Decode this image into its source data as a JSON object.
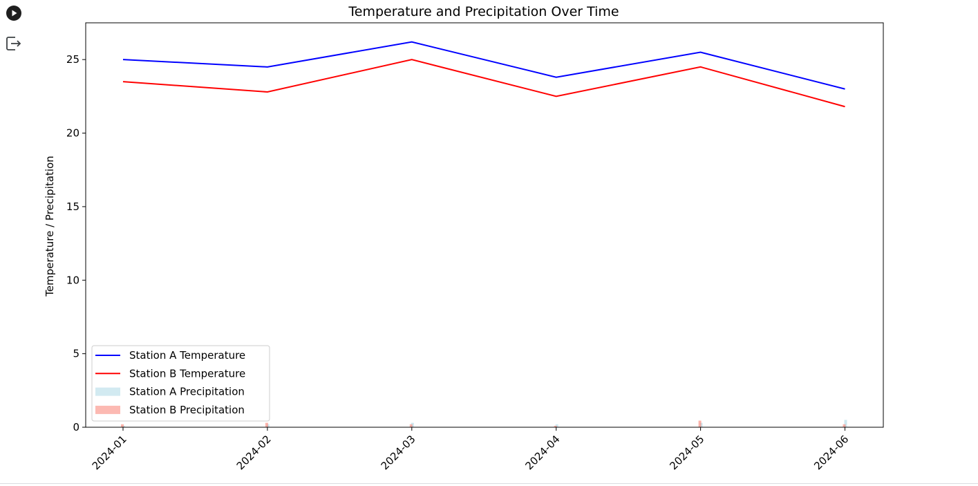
{
  "cell": {
    "run_icon": "play-circle-icon",
    "output_icon": "output-redirect-icon"
  },
  "chart_data": {
    "type": "line",
    "title": "Temperature and Precipitation Over Time",
    "xlabel": "",
    "ylabel": "Temperature / Precipitation",
    "categories": [
      "2024-01",
      "2024-02",
      "2024-03",
      "2024-04",
      "2024-05",
      "2024-06"
    ],
    "ylim": [
      0,
      27.5
    ],
    "yticks": [
      0,
      5,
      10,
      15,
      20,
      25
    ],
    "grid": false,
    "legend_position": "lower-left",
    "line_series": [
      {
        "name": "Station A Temperature",
        "color": "#0000ff",
        "values": [
          25.0,
          24.5,
          26.2,
          23.8,
          25.5,
          23.0
        ]
      },
      {
        "name": "Station B Temperature",
        "color": "#ff0000",
        "values": [
          23.5,
          22.8,
          25.0,
          22.5,
          24.5,
          21.8
        ]
      }
    ],
    "bar_series": [
      {
        "name": "Station A Precipitation",
        "color": "#add8e6",
        "values": [
          0.1,
          0.2,
          0.3,
          0.2,
          0.3,
          0.5
        ]
      },
      {
        "name": "Station B Precipitation",
        "color": "#fa8072",
        "values": [
          0.2,
          0.3,
          0.2,
          0.1,
          0.45,
          0.2
        ]
      }
    ]
  }
}
